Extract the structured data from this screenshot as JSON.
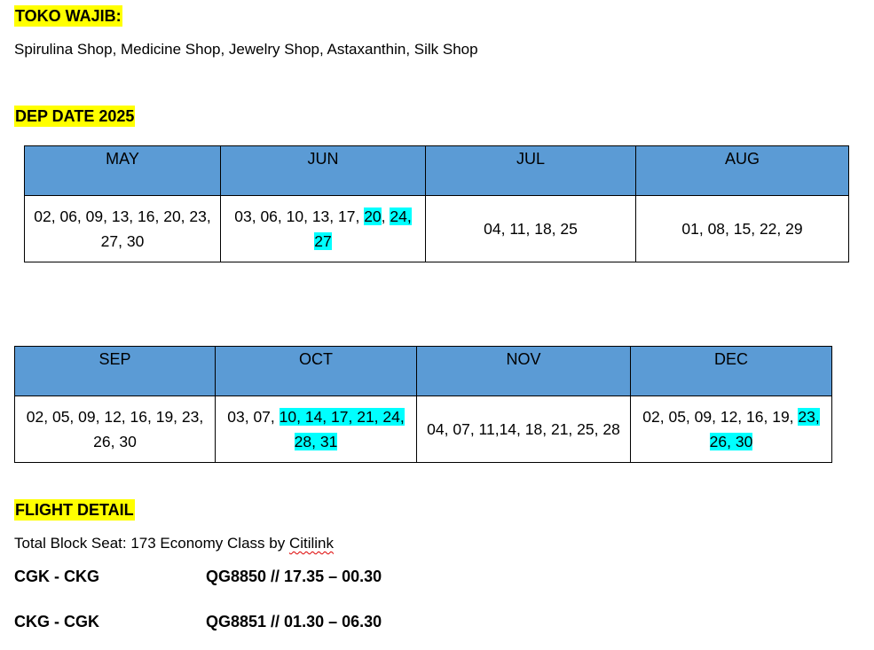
{
  "toko": {
    "heading": "TOKO WAJIB:",
    "shops": "Spirulina Shop, Medicine Shop, Jewelry Shop, Astaxanthin, Silk Shop"
  },
  "dep": {
    "heading": "DEP DATE 2025",
    "table1": {
      "headers": [
        "MAY",
        "JUN",
        "JUL",
        "AUG"
      ],
      "may": "02, 06, 09, 13, 16, 20, 23, 27, 30",
      "jun": {
        "plain": "03, 06, 10, 13, 17, ",
        "hl1": "20",
        "sep1": ", ",
        "hl2": "24,",
        "hl3": "27"
      },
      "jul": "04, 11, 18, 25",
      "aug": "01, 08, 15, 22, 29"
    },
    "table2": {
      "headers": [
        "SEP",
        "OCT",
        "NOV",
        "DEC"
      ],
      "sep": "02, 05, 09, 12, 16, 19, 23, 26, 30",
      "oct": {
        "plain": "03, 07, ",
        "hl1": "10, 14, 17, 21, 24,",
        "hl2": "28, 31"
      },
      "nov": "04, 07, 11,14, 18, 21, 25, 28",
      "dec": {
        "plain": "02, 05, 09, 12, 16, 19, ",
        "hl1": "23,",
        "hl2": "26, 30"
      }
    }
  },
  "flight": {
    "heading": "FLIGHT DETAIL",
    "seat_prefix": "Total Block Seat: 173 Economy Class by ",
    "carrier": "Citilink",
    "rows": [
      {
        "route": "CGK - CKG",
        "detail": "QG8850 // 17.35 – 00.30"
      },
      {
        "route": "CKG - CGK",
        "detail": "QG8851 // 01.30 – 06.30"
      }
    ]
  },
  "colors": {
    "header_blue": "#5b9bd5",
    "highlight_yellow": "#ffff00",
    "highlight_cyan": "#00ffff"
  }
}
